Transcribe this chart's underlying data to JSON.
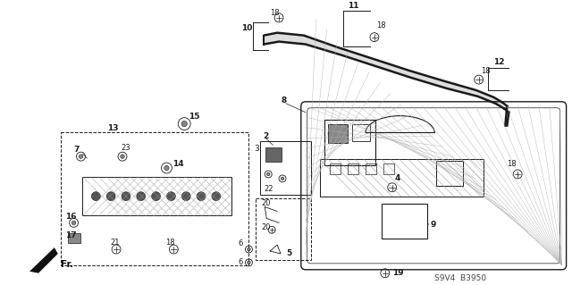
{
  "bg_color": "#ffffff",
  "line_color": "#1a1a1a",
  "fig_width": 6.4,
  "fig_height": 3.19,
  "dpi": 100,
  "watermark": "S9V4  B3950"
}
